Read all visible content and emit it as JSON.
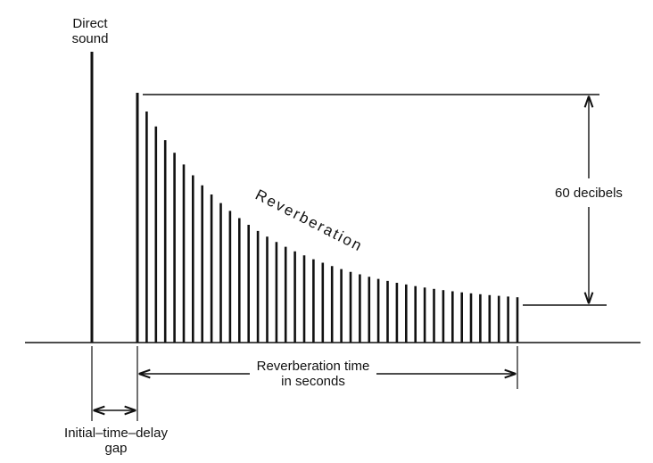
{
  "labels": {
    "direct_line1": "Direct",
    "direct_line2": "sound",
    "reverberation": "Reverberation",
    "decibels": "60 decibels",
    "rev_time_line1": "Reverberation time",
    "rev_time_line2": "in seconds",
    "gap_line1": "Initial–time–delay",
    "gap_line2": "gap"
  },
  "colors": {
    "ink": "#111111",
    "background": "#ffffff"
  }
}
